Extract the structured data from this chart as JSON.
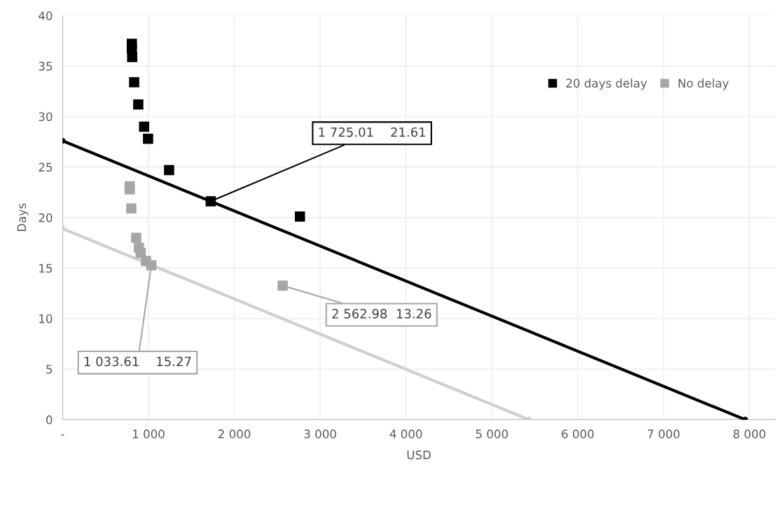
{
  "chart_data": {
    "type": "scatter",
    "xlabel": "USD",
    "ylabel": "Days",
    "xlim": [
      0,
      8300
    ],
    "ylim": [
      0,
      40
    ],
    "xticks": [
      {
        "value": 0,
        "label": "-"
      },
      {
        "value": 1000,
        "label": "1 000"
      },
      {
        "value": 2000,
        "label": "2 000"
      },
      {
        "value": 3000,
        "label": "3 000"
      },
      {
        "value": 4000,
        "label": "4 000"
      },
      {
        "value": 5000,
        "label": "5 000"
      },
      {
        "value": 6000,
        "label": "6 000"
      },
      {
        "value": 7000,
        "label": "7 000"
      },
      {
        "value": 8000,
        "label": "8 000"
      }
    ],
    "yticks": [
      0,
      5,
      10,
      15,
      20,
      25,
      30,
      35,
      40
    ],
    "grid": true,
    "legend": "top right",
    "marker": "square",
    "series": [
      {
        "name": "20 days delay",
        "color": "#000000",
        "x": [
          806,
          806,
          810,
          833,
          881,
          949,
          995,
          1240,
          1725.01,
          2764
        ],
        "values": [
          37.2,
          36.7,
          35.9,
          33.4,
          31.2,
          29.0,
          27.8,
          24.7,
          21.61,
          20.1
        ]
      },
      {
        "name": "No delay",
        "color": "#a6a6a6",
        "x": [
          781,
          781,
          800,
          857,
          889,
          909,
          971,
          1033.61,
          2562.98
        ],
        "values": [
          23.1,
          22.8,
          20.9,
          18.0,
          17.0,
          16.5,
          15.7,
          15.27,
          13.26
        ]
      },
      {
        "type": "line",
        "color": "#000000",
        "marker": "circle",
        "x": [
          0,
          7950
        ],
        "values": [
          27.6,
          0
        ]
      },
      {
        "type": "line",
        "color": "#d0cece",
        "marker": "circle",
        "x": [
          0,
          5430
        ],
        "values": [
          18.9,
          0
        ]
      }
    ],
    "annotations": [
      {
        "text": "1 725.01    21.61",
        "x": 1725.01,
        "y": 21.61
      },
      {
        "text": "1 033.61    15.27",
        "x": 1033.61,
        "y": 15.27
      },
      {
        "text": "2 562.98  13.26",
        "x": 2562.98,
        "y": 13.26
      }
    ]
  }
}
